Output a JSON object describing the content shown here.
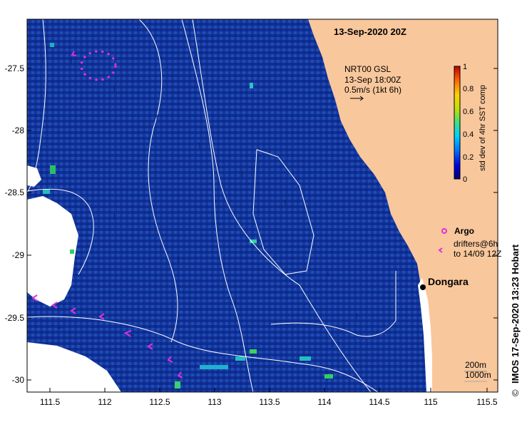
{
  "map": {
    "title": "13-Sep-2020 20Z",
    "source_label": "NRT00 GSL",
    "vector_time": "13-Sep 18:00Z",
    "vector_scale": "0.5m/s (1kt 6h)",
    "place_label": "Dongara",
    "copyright_symbol": "©",
    "credit": "IMOS 17-Sep-2020 13:23 Hobart",
    "contour_label_1": "200m",
    "contour_label_2": "1000m",
    "longitude_ticks": [
      "111.5",
      "112",
      "112.5",
      "113",
      "113.5",
      "114",
      "114.5",
      "115",
      "115.5"
    ],
    "latitude_ticks": [
      "-27.5",
      "-28",
      "-28.5",
      "-29",
      "-29.5",
      "-30"
    ],
    "colorbar": {
      "label": "std dev of 4hr SST comp",
      "ticks": [
        "1",
        "0.8",
        "0.6",
        "0.4",
        "0.2",
        "0"
      ],
      "colors": [
        "#00007a",
        "#0000e0",
        "#0070ff",
        "#00d0ff",
        "#40e080",
        "#c0e000",
        "#ffd000",
        "#ff6000",
        "#c00000"
      ]
    },
    "legend": {
      "argo_label": "Argo",
      "drifters_label_1": "drifters@6h",
      "drifters_label_2": "to 14/09 12Z"
    },
    "colors": {
      "land": "#f9c79c",
      "ocean": "#1438a0",
      "drifter": "#e030e0",
      "contour": "#ffffff"
    }
  }
}
